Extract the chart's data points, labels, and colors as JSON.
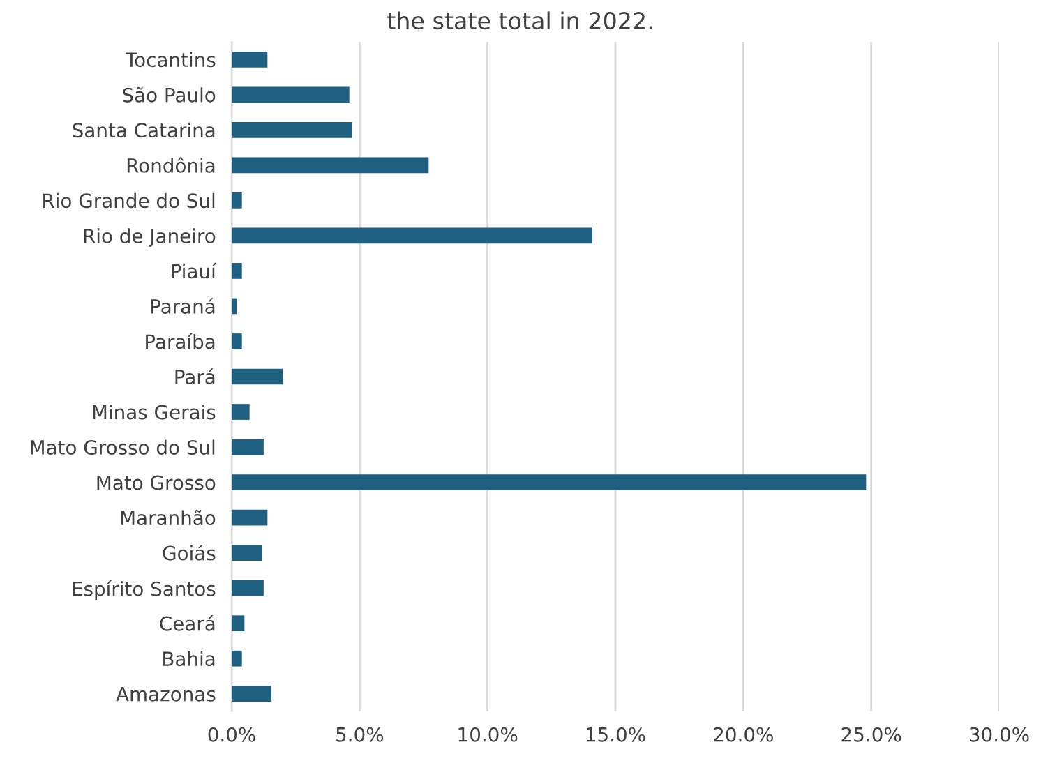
{
  "chart_data": {
    "type": "bar",
    "orientation": "horizontal",
    "title": "the state total in 2022.",
    "categories": [
      "Tocantins",
      "São Paulo",
      "Santa Catarina",
      "Rondônia",
      "Rio Grande do Sul",
      "Rio de Janeiro",
      "Piauí",
      "Paraná",
      "Paraíba",
      "Pará",
      "Minas Gerais",
      "Mato Grosso do Sul",
      "Mato Grosso",
      "Maranhão",
      "Goiás",
      "Espírito Santos",
      "Ceará",
      "Bahia",
      "Amazonas"
    ],
    "values": [
      1.4,
      4.6,
      4.7,
      7.7,
      0.4,
      14.1,
      0.4,
      0.2,
      0.4,
      2.0,
      0.7,
      1.25,
      24.8,
      1.4,
      1.2,
      1.25,
      0.5,
      0.4,
      1.55
    ],
    "color": "#1f5f80",
    "xlim": [
      0,
      30
    ],
    "xticks": [
      {
        "value": 0,
        "label": "0.0%"
      },
      {
        "value": 5,
        "label": "5.0%"
      },
      {
        "value": 10,
        "label": "10.0%"
      },
      {
        "value": 15,
        "label": "15.0%"
      },
      {
        "value": 20,
        "label": "20.0%"
      },
      {
        "value": 25,
        "label": "25.0%"
      },
      {
        "value": 30,
        "label": "30.0%"
      }
    ],
    "grid": "x",
    "legend": false
  }
}
